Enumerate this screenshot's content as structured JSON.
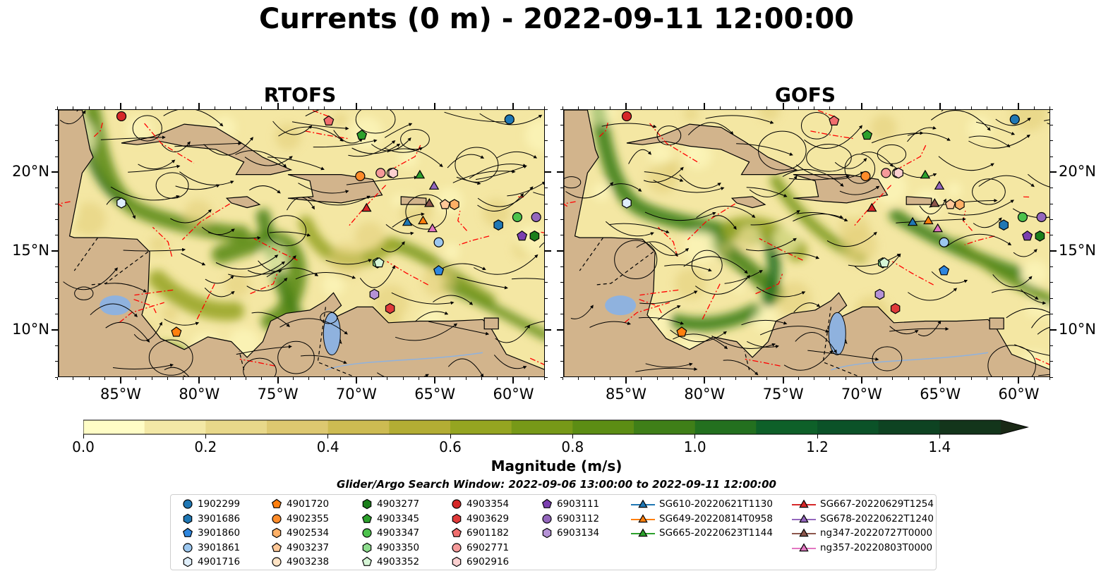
{
  "figure": {
    "title": "Currents (0 m) - 2022-09-11 12:00:00",
    "panels": [
      {
        "title": "RTOFS"
      },
      {
        "title": "GOFS"
      }
    ]
  },
  "map_extent": {
    "lon": [
      -89,
      -58
    ],
    "lat": [
      7,
      24
    ]
  },
  "axes": {
    "x_ticks": [
      "85°W",
      "80°W",
      "75°W",
      "70°W",
      "65°W",
      "60°W"
    ],
    "x_tick_values": [
      -85,
      -80,
      -75,
      -70,
      -65,
      -60
    ],
    "y_ticks": [
      "20°N",
      "15°N",
      "10°N"
    ],
    "y_tick_values": [
      20,
      15,
      10
    ]
  },
  "colorbar": {
    "label": "Magnitude (m/s)",
    "ticks": [
      "0.0",
      "0.2",
      "0.4",
      "0.6",
      "0.8",
      "1.0",
      "1.2",
      "1.4"
    ],
    "range": [
      0,
      1.5
    ],
    "extend": "max",
    "colors": [
      "#fffdc6",
      "#f3e8a6",
      "#e8d88a",
      "#ddc870",
      "#cdbb52",
      "#b3ad34",
      "#95a521",
      "#779918",
      "#5c8d14",
      "#3f7f18",
      "#23701f",
      "#0e6029",
      "#0b5228",
      "#0e4322",
      "#13351b"
    ]
  },
  "colors": {
    "land": "#d2b48c",
    "lake": "#8fb2de",
    "ocean_low": "#fffdc6",
    "current_strong": "#3f7f18",
    "eez": "#ff0000"
  },
  "search_window": "Glider/Argo Search Window: 2022-09-06 13:00:00 to 2022-09-11 12:00:00",
  "legend": [
    {
      "label": "1902299",
      "marker": "circle",
      "color": "#1f77b4"
    },
    {
      "label": "3901686",
      "marker": "hexagon",
      "color": "#1f77b4"
    },
    {
      "label": "3901860",
      "marker": "pentagon",
      "color": "#2e86de"
    },
    {
      "label": "3901861",
      "marker": "circle",
      "color": "#9cc7ef"
    },
    {
      "label": "4901716",
      "marker": "hexagon",
      "color": "#dfeefb"
    },
    {
      "label": "4901720",
      "marker": "pentagon",
      "color": "#ff7f0e"
    },
    {
      "label": "4902355",
      "marker": "circle",
      "color": "#ff8c2a"
    },
    {
      "label": "4902534",
      "marker": "hexagon",
      "color": "#ffb066"
    },
    {
      "label": "4903237",
      "marker": "pentagon",
      "color": "#ffc898"
    },
    {
      "label": "4903238",
      "marker": "circle",
      "color": "#ffe3c4"
    },
    {
      "label": "4903277",
      "marker": "hexagon",
      "color": "#1b7f1b"
    },
    {
      "label": "4903345",
      "marker": "pentagon",
      "color": "#2ca02c"
    },
    {
      "label": "4903347",
      "marker": "circle",
      "color": "#4cc24c"
    },
    {
      "label": "4903350",
      "marker": "hexagon",
      "color": "#8ddc8d"
    },
    {
      "label": "4903352",
      "marker": "pentagon",
      "color": "#d6f5d6"
    },
    {
      "label": "4903354",
      "marker": "circle",
      "color": "#d62728"
    },
    {
      "label": "4903629",
      "marker": "hexagon",
      "color": "#e03a3a"
    },
    {
      "label": "6901182",
      "marker": "pentagon",
      "color": "#f06e6e"
    },
    {
      "label": "6902771",
      "marker": "circle",
      "color": "#f59a9a"
    },
    {
      "label": "6902916",
      "marker": "hexagon",
      "color": "#fbd0d0"
    },
    {
      "label": "6903111",
      "marker": "pentagon",
      "color": "#7b3fb0"
    },
    {
      "label": "6903112",
      "marker": "circle",
      "color": "#9467bd"
    },
    {
      "label": "6903134",
      "marker": "hexagon",
      "color": "#b592d6"
    },
    {
      "label": "SG610-20220621T1130",
      "marker": "triangle-line",
      "color": "#1f77b4"
    },
    {
      "label": "SG649-20220814T0958",
      "marker": "triangle-line",
      "color": "#ff7f0e"
    },
    {
      "label": "SG665-20220623T1144",
      "marker": "triangle-line",
      "color": "#2ca02c"
    },
    {
      "label": "SG667-20220629T1254",
      "marker": "triangle-line",
      "color": "#d62728"
    },
    {
      "label": "SG678-20220622T1240",
      "marker": "triangle-line",
      "color": "#9467bd"
    },
    {
      "label": "ng347-20220727T0000",
      "marker": "triangle-line",
      "color": "#8c564b"
    },
    {
      "label": "ng357-20220803T0000",
      "marker": "triangle-line",
      "color": "#e377c2"
    }
  ],
  "platforms": [
    {
      "id": "1902299",
      "lon": -60.3,
      "lat": 23.4
    },
    {
      "id": "3901686",
      "lon": -61.0,
      "lat": 16.7
    },
    {
      "id": "3901860",
      "lon": -64.8,
      "lat": 13.8
    },
    {
      "id": "3901861",
      "lon": -64.8,
      "lat": 15.6
    },
    {
      "id": "4901716",
      "lon": -85.0,
      "lat": 18.1
    },
    {
      "id": "4901720",
      "lon": -81.5,
      "lat": 9.9
    },
    {
      "id": "4902355",
      "lon": -69.8,
      "lat": 19.8
    },
    {
      "id": "4902534",
      "lon": -63.8,
      "lat": 18.0
    },
    {
      "id": "4903237",
      "lon": -64.4,
      "lat": 18.0
    },
    {
      "id": "4903238",
      "lon": -67.8,
      "lat": 20.0
    },
    {
      "id": "4903277",
      "lon": -58.7,
      "lat": 16.0
    },
    {
      "id": "4903345",
      "lon": -69.7,
      "lat": 22.4
    },
    {
      "id": "4903347",
      "lon": -59.8,
      "lat": 17.2
    },
    {
      "id": "4903350",
      "lon": -68.7,
      "lat": 14.3
    },
    {
      "id": "4903352",
      "lon": -68.6,
      "lat": 14.3
    },
    {
      "id": "4903354",
      "lon": -85.0,
      "lat": 23.6
    },
    {
      "id": "4903629",
      "lon": -67.9,
      "lat": 11.4
    },
    {
      "id": "6901182",
      "lon": -71.8,
      "lat": 23.3
    },
    {
      "id": "6902771",
      "lon": -68.5,
      "lat": 20.0
    },
    {
      "id": "6902916",
      "lon": -67.7,
      "lat": 20.0
    },
    {
      "id": "6903111",
      "lon": -59.5,
      "lat": 16.0
    },
    {
      "id": "6903112",
      "lon": -58.6,
      "lat": 17.2
    },
    {
      "id": "6903134",
      "lon": -68.9,
      "lat": 12.3
    },
    {
      "id": "SG610-20220621T1130",
      "lon": -66.8,
      "lat": 16.9
    },
    {
      "id": "SG649-20220814T0958",
      "lon": -65.8,
      "lat": 17.0
    },
    {
      "id": "SG665-20220623T1144",
      "lon": -66.0,
      "lat": 19.9
    },
    {
      "id": "SG667-20220629T1254",
      "lon": -69.4,
      "lat": 17.8
    },
    {
      "id": "SG678-20220622T1240",
      "lon": -65.1,
      "lat": 19.2
    },
    {
      "id": "ng347-20220727T0000",
      "lon": -65.4,
      "lat": 18.1
    },
    {
      "id": "ng357-20220803T0000",
      "lon": -65.2,
      "lat": 16.5
    }
  ]
}
